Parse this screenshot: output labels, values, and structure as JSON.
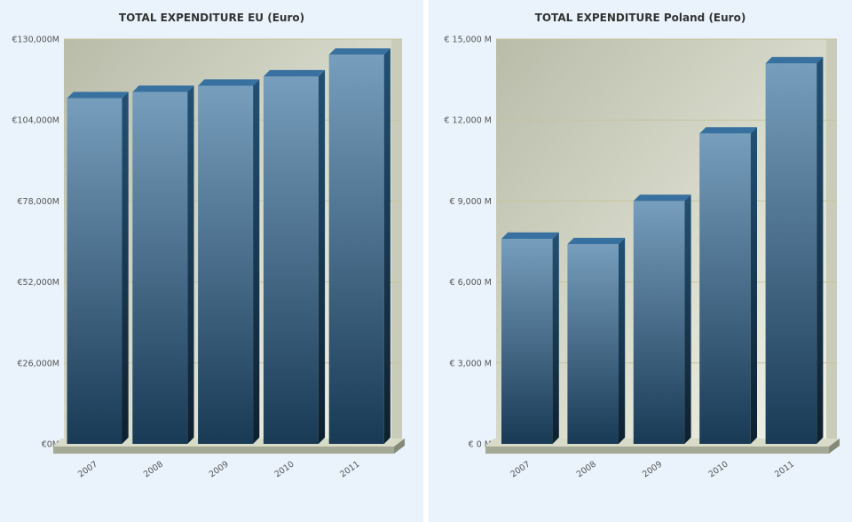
{
  "chart_data": [
    {
      "type": "bar",
      "title": "TOTAL EXPENDITURE EU (Euro)",
      "categories": [
        "2007",
        "2008",
        "2009",
        "2010",
        "2011"
      ],
      "values": [
        111000,
        113000,
        115000,
        118000,
        125000
      ],
      "ylim": [
        0,
        130000
      ],
      "y_ticks": [
        0,
        26000,
        52000,
        78000,
        104000,
        130000
      ],
      "y_tick_labels": [
        "€0M",
        "€26,000M",
        "€52,000M",
        "€78,000M",
        "€104,000M",
        "€130,000M"
      ],
      "xlabel": "",
      "ylabel": "",
      "grid": true,
      "legend": "none",
      "bar_color": "#2d6a9a"
    },
    {
      "type": "bar",
      "title": "TOTAL EXPENDITURE Poland (Euro)",
      "categories": [
        "2007",
        "2008",
        "2009",
        "2010",
        "2011"
      ],
      "values": [
        7600,
        7400,
        9000,
        11500,
        14100
      ],
      "ylim": [
        0,
        15000
      ],
      "y_ticks": [
        0,
        3000,
        6000,
        9000,
        12000,
        15000
      ],
      "y_tick_labels": [
        "€ 0 M",
        "€ 3,000 M",
        "€ 6,000 M",
        "€ 9,000 M",
        "€ 12,000 M",
        "€ 15,000 M"
      ],
      "xlabel": "",
      "ylabel": "",
      "grid": true,
      "legend": "none",
      "bar_color": "#2d6a9a"
    }
  ]
}
